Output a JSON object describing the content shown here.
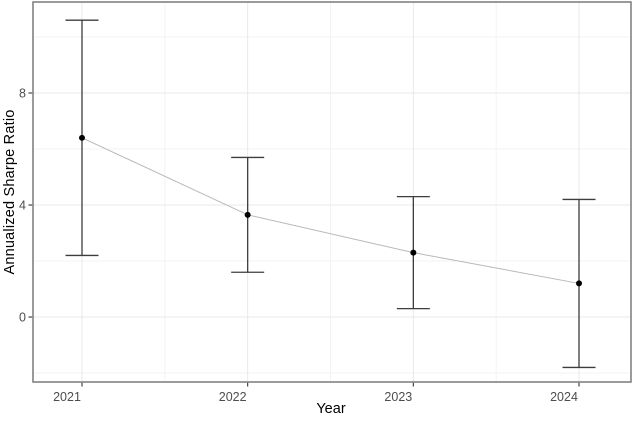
{
  "chart_data": {
    "type": "line",
    "title": "",
    "xlabel": "Year",
    "ylabel": "Annualized Sharpe Ratio",
    "categories": [
      "2021",
      "2022",
      "2023",
      "2024"
    ],
    "series": [
      {
        "name": "Annualized Sharpe Ratio",
        "values": [
          6.4,
          3.65,
          2.3,
          1.2
        ],
        "upper": [
          10.6,
          5.7,
          4.3,
          4.2
        ],
        "lower": [
          2.2,
          1.6,
          0.3,
          -1.8
        ]
      }
    ],
    "y_ticks": [
      0,
      4,
      8
    ],
    "y_minor_ticks": [
      -2,
      2,
      6,
      10
    ],
    "ylim": [
      -2.32,
      11.25
    ],
    "grid": "major-and-minor",
    "legend": "none",
    "marker": "filled-circle",
    "colors": {
      "point": "#000000",
      "error_bar": "#3d3d3d",
      "trend_line": "#b8b8b8",
      "grid_major": "#e8e8e8",
      "grid_minor": "#f3f3f3",
      "panel_border": "#828282",
      "tick": "#333333",
      "tick_label": "#4d4d4d",
      "axis_title": "#000000",
      "background": "#ffffff"
    }
  }
}
